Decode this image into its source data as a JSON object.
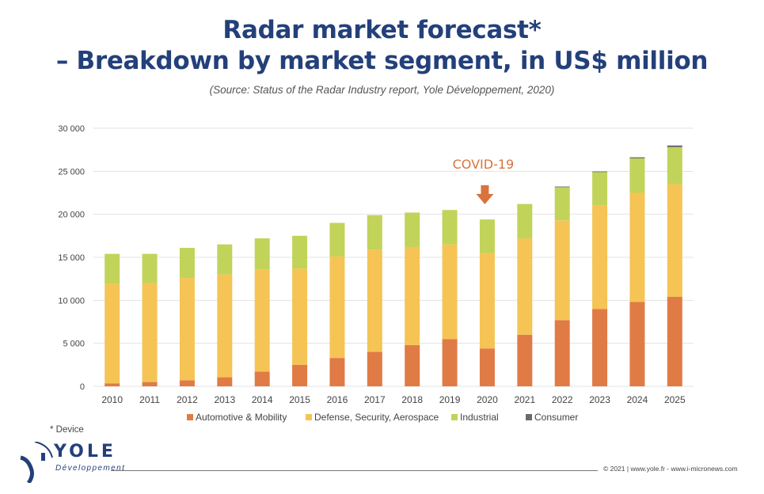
{
  "header": {
    "title_line1": "Radar market forecast*",
    "title_line2": "– Breakdown by market segment, in US$ million",
    "source": "(Source: Status of the Radar Industry report, Yole Développement, 2020)"
  },
  "annotation": {
    "label": "COVID-19",
    "year": "2020"
  },
  "footnote": "* Device",
  "logo": {
    "name": "YOLE",
    "subtitle": "Développement"
  },
  "footer": {
    "text": "© 2021 | www.yole.fr - www.i-micronews.com"
  },
  "colors": {
    "title": "#23407a",
    "automotive": "#e07b45",
    "defense": "#f5c455",
    "industrial": "#c2d35a",
    "consumer": "#6b6b6b",
    "covid": "#d9733d",
    "grid": "#e3e3e3"
  },
  "chart_data": {
    "type": "bar",
    "stacked": true,
    "title": "Radar market forecast* – Breakdown by market segment, in US$ million",
    "xlabel": "",
    "ylabel": "",
    "ylim": [
      0,
      30000
    ],
    "yticks": [
      0,
      5000,
      10000,
      15000,
      20000,
      25000,
      30000
    ],
    "ytick_labels": [
      "0",
      "5 000",
      "10 000",
      "15 000",
      "20 000",
      "25 000",
      "30 000"
    ],
    "grid": true,
    "legend_position": "bottom",
    "categories": [
      "2010",
      "2011",
      "2012",
      "2013",
      "2014",
      "2015",
      "2016",
      "2017",
      "2018",
      "2019",
      "2020",
      "2021",
      "2022",
      "2023",
      "2024",
      "2025"
    ],
    "series": [
      {
        "name": "Automotive & Mobility",
        "color": "#e07b45",
        "values": [
          350,
          500,
          700,
          1050,
          1700,
          2500,
          3300,
          4000,
          4800,
          5500,
          4400,
          6000,
          7700,
          9000,
          9800,
          10400
        ]
      },
      {
        "name": "Defense, Security, Aerospace",
        "color": "#f5c455",
        "values": [
          11550,
          11500,
          11900,
          11950,
          11900,
          11200,
          11800,
          11900,
          11400,
          11000,
          11100,
          11200,
          11600,
          12000,
          12700,
          13100
        ]
      },
      {
        "name": "Industrial",
        "color": "#c2d35a",
        "values": [
          3500,
          3400,
          3500,
          3500,
          3600,
          3800,
          3900,
          4000,
          4000,
          4000,
          3900,
          4000,
          3900,
          3900,
          4000,
          4300
        ]
      },
      {
        "name": "Consumer",
        "color": "#6b6b6b",
        "values": [
          0,
          0,
          0,
          0,
          0,
          0,
          0,
          0,
          0,
          0,
          0,
          0,
          30,
          80,
          120,
          200
        ]
      }
    ],
    "annotations": [
      {
        "text": "COVID-19",
        "category": "2020",
        "type": "down-arrow"
      }
    ]
  }
}
